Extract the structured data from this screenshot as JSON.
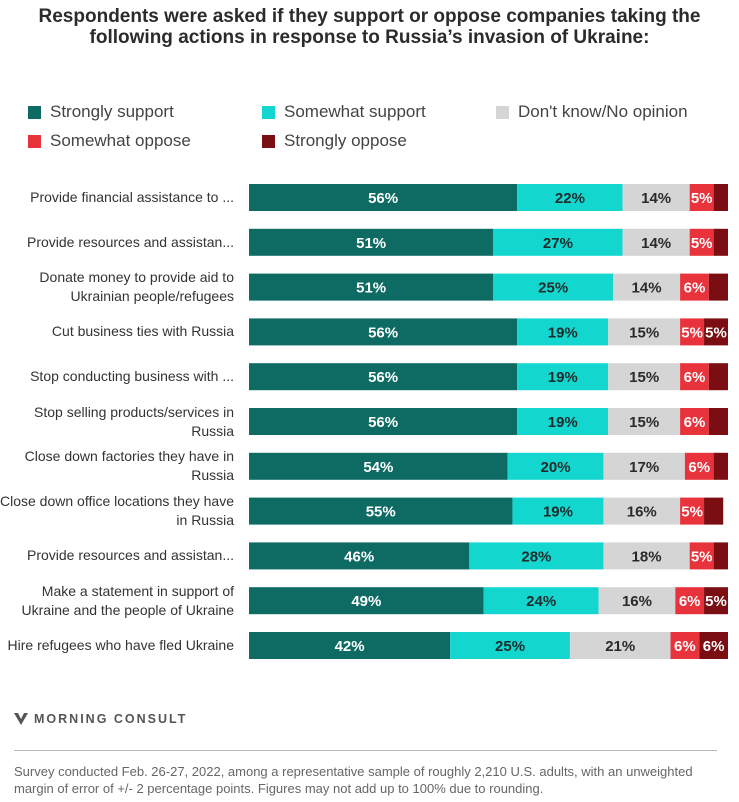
{
  "title_line1": "Respondents were asked if they support or oppose companies taking the",
  "title_line2": "following actions in response to Russia’s invasion of Ukraine:",
  "legend": [
    {
      "label": "Strongly support",
      "color": "#0e6b64"
    },
    {
      "label": "Somewhat support",
      "color": "#13d6cf"
    },
    {
      "label": "Don't know/No opinion",
      "color": "#d5d5d5"
    },
    {
      "label": "Somewhat oppose",
      "color": "#e8323c"
    },
    {
      "label": "Strongly oppose",
      "color": "#7b0e12"
    }
  ],
  "chart_data": {
    "type": "bar",
    "orientation": "horizontal",
    "stacked": true,
    "title": "Respondents were asked if they support or oppose companies taking the following actions in response to Russia’s invasion of Ukraine:",
    "legend_position": "top",
    "xlim": [
      0,
      100
    ],
    "categories": [
      "Provide financial assistance to ...",
      "Provide resources and assistan...",
      "Donate money to provide aid to Ukrainian people/refugees",
      "Cut business ties with Russia",
      "Stop conducting business with ...",
      "Stop selling products/services in Russia",
      "Close down factories they have in Russia",
      "Close down office locations they have in Russia",
      "Provide resources and assistan...",
      "Make a statement in support of Ukraine and the people of Ukraine",
      "Hire refugees who have fled Ukraine"
    ],
    "series": [
      {
        "name": "Strongly support",
        "color": "#0e6b64",
        "label_color": "#ffffff",
        "values": [
          56,
          51,
          51,
          56,
          56,
          56,
          54,
          55,
          46,
          49,
          42
        ]
      },
      {
        "name": "Somewhat support",
        "color": "#13d6cf",
        "label_color": "#1f2a2a",
        "values": [
          22,
          27,
          25,
          19,
          19,
          19,
          20,
          19,
          28,
          24,
          25
        ]
      },
      {
        "name": "Don't know/No opinion",
        "color": "#d5d5d5",
        "label_color": "#2a2a2a",
        "values": [
          14,
          14,
          14,
          15,
          15,
          15,
          17,
          16,
          18,
          16,
          21
        ]
      },
      {
        "name": "Somewhat oppose",
        "color": "#e8323c",
        "label_color": "#ffffff",
        "values": [
          5,
          5,
          6,
          5,
          6,
          6,
          6,
          5,
          5,
          6,
          6
        ]
      },
      {
        "name": "Strongly oppose",
        "color": "#7b0e12",
        "label_color": "#ffffff",
        "values": [
          3,
          3,
          4,
          5,
          4,
          4,
          3,
          4,
          3,
          5,
          6
        ]
      }
    ],
    "value_suffix": "%"
  },
  "brand": "MORNING CONSULT",
  "footnote": "Survey conducted Feb. 26-27, 2022, among a representative sample of roughly 2,210 U.S. adults, with an unweighted margin of error of +/- 2 percentage points. Figures may not add up to 100% due to rounding."
}
